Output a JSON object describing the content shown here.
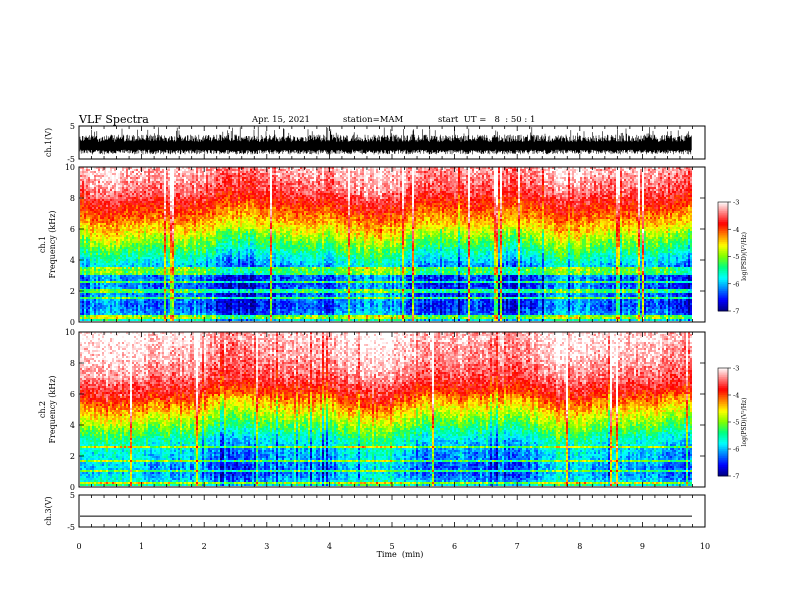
{
  "header": {
    "title": "VLF Spectra",
    "date": "Apr. 15, 2021",
    "station": "station=MAM",
    "start": "start  UT =   8  : 50 : 1"
  },
  "chart_data": [
    {
      "type": "line",
      "id": "ch1-waveform",
      "ylabel": "ch.1(V)",
      "xlim": [
        0,
        10
      ],
      "ylim": [
        -5,
        5
      ],
      "yticks": [
        "5",
        "-5"
      ],
      "series": [
        {
          "x_range": [
            0,
            9.82
          ],
          "level_v": -0.6,
          "amplitude_v": [
            -3.6,
            2.4
          ],
          "note_values": "dense noise trace"
        }
      ]
    },
    {
      "type": "heatmap",
      "id": "ch1-spectrogram",
      "ylabel": [
        "ch.1",
        "Frequency  (kHz)"
      ],
      "xlim": [
        0,
        9.82
      ],
      "ylim": [
        0,
        10
      ],
      "yticks": [
        "0",
        "2",
        "4",
        "6",
        "8",
        "10"
      ],
      "profile_khz": [
        0,
        0.5,
        1,
        1.5,
        2,
        2.5,
        3,
        3.5,
        4,
        4.5,
        5,
        5.5,
        6,
        6.5,
        7,
        7.5,
        8,
        8.5,
        9,
        9.5,
        10
      ],
      "profile_log_psd": [
        -5.6,
        -6.2,
        -6.4,
        -6.3,
        -6.3,
        -6.4,
        -6.3,
        -6.1,
        -5.8,
        -5.5,
        -5.2,
        -4.9,
        -4.6,
        -4.3,
        -4.1,
        -3.9,
        -3.7,
        -3.5,
        -3.4,
        -3.3,
        -3.2
      ],
      "lines_khz": [
        0.25,
        0.4,
        1.5,
        2.0,
        2.6,
        3.1,
        3.3,
        3.5
      ]
    },
    {
      "type": "heatmap",
      "id": "ch2-spectrogram",
      "ylabel": [
        "ch.2",
        "Frequency  (kHz)"
      ],
      "xlim": [
        0,
        9.82
      ],
      "ylim": [
        0,
        10
      ],
      "yticks": [
        "0",
        "2",
        "4",
        "6",
        "8",
        "10"
      ],
      "profile_khz": [
        0,
        0.5,
        1,
        1.5,
        2,
        2.5,
        3,
        3.5,
        4,
        4.5,
        5,
        5.5,
        6,
        6.5,
        7,
        7.5,
        8,
        8.5,
        9,
        9.5,
        10
      ],
      "profile_log_psd": [
        -5.5,
        -6.0,
        -6.2,
        -6.1,
        -6.0,
        -5.9,
        -5.7,
        -5.4,
        -5.1,
        -4.8,
        -4.5,
        -4.2,
        -3.9,
        -3.7,
        -3.5,
        -3.4,
        -3.3,
        -3.2,
        -3.2,
        -3.1,
        -3.1
      ],
      "lines_khz": [
        0.3,
        1.0,
        1.7,
        2.6
      ]
    },
    {
      "type": "line",
      "id": "ch3-waveform",
      "ylabel": "ch.3(V)",
      "xlim": [
        0,
        10
      ],
      "ylim": [
        -5,
        5
      ],
      "yticks": [
        "5",
        "-5"
      ],
      "series": [
        {
          "x": [
            0,
            9.82
          ],
          "y": [
            -1.6,
            -1.6
          ]
        }
      ]
    }
  ],
  "colorbar": {
    "label": "log(PSD)(V²/Hz)",
    "ticks": [
      "-3",
      "-4",
      "-5",
      "-6",
      "-7"
    ],
    "range": [
      -7,
      -3
    ],
    "colors": [
      "#000080",
      "#0000ff",
      "#0080ff",
      "#00ffff",
      "#00ff80",
      "#80ff00",
      "#ffff00",
      "#ff8000",
      "#ff0000",
      "#ff8080",
      "#ffffff"
    ]
  },
  "x_axis": {
    "label": "Time  (min)",
    "ticks": [
      "0",
      "1",
      "2",
      "3",
      "4",
      "5",
      "6",
      "7",
      "8",
      "9",
      "10"
    ]
  }
}
